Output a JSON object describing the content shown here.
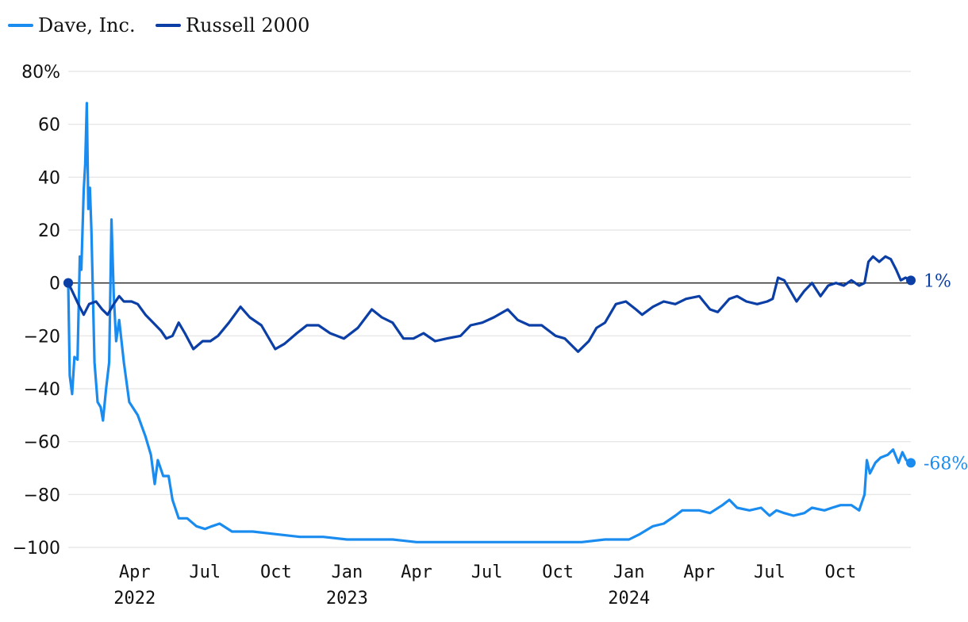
{
  "chart_data": {
    "type": "line",
    "title": "",
    "xlabel": "",
    "ylabel": "",
    "ylim": [
      -100,
      80
    ],
    "y_ticks": [
      80,
      60,
      40,
      20,
      0,
      -20,
      -40,
      -60,
      -80,
      -100
    ],
    "y_tick_labels": [
      "80%",
      "60",
      "40",
      "20",
      "0",
      "−20",
      "−40",
      "−60",
      "−80",
      "−100"
    ],
    "x_range": [
      "2022-01-05",
      "2024-12-31"
    ],
    "x_ticks": [
      {
        "date": "2022-04-01",
        "label": "Apr",
        "year": "2022"
      },
      {
        "date": "2022-07-01",
        "label": "Jul",
        "year": ""
      },
      {
        "date": "2022-10-01",
        "label": "Oct",
        "year": ""
      },
      {
        "date": "2023-01-01",
        "label": "Jan",
        "year": "2023"
      },
      {
        "date": "2023-04-01",
        "label": "Apr",
        "year": ""
      },
      {
        "date": "2023-07-01",
        "label": "Jul",
        "year": ""
      },
      {
        "date": "2023-10-01",
        "label": "Oct",
        "year": ""
      },
      {
        "date": "2024-01-01",
        "label": "Jan",
        "year": "2024"
      },
      {
        "date": "2024-04-01",
        "label": "Apr",
        "year": ""
      },
      {
        "date": "2024-07-01",
        "label": "Jul",
        "year": ""
      },
      {
        "date": "2024-10-01",
        "label": "Oct",
        "year": ""
      }
    ],
    "grid": true,
    "legend_position": "top-left",
    "series": [
      {
        "name": "Dave, Inc.",
        "color": "#1a8cf0",
        "end_label": "-68%",
        "points": [
          [
            "2022-01-05",
            0
          ],
          [
            "2022-01-07",
            -35
          ],
          [
            "2022-01-10",
            -42
          ],
          [
            "2022-01-13",
            -28
          ],
          [
            "2022-01-17",
            -29
          ],
          [
            "2022-01-20",
            10
          ],
          [
            "2022-01-22",
            5
          ],
          [
            "2022-01-25",
            35
          ],
          [
            "2022-01-27",
            45
          ],
          [
            "2022-01-29",
            68
          ],
          [
            "2022-01-31",
            28
          ],
          [
            "2022-02-02",
            36
          ],
          [
            "2022-02-04",
            20
          ],
          [
            "2022-02-08",
            -30
          ],
          [
            "2022-02-12",
            -45
          ],
          [
            "2022-02-16",
            -47
          ],
          [
            "2022-02-19",
            -52
          ],
          [
            "2022-02-23",
            -40
          ],
          [
            "2022-02-27",
            -30
          ],
          [
            "2022-03-02",
            24
          ],
          [
            "2022-03-05",
            -5
          ],
          [
            "2022-03-08",
            -22
          ],
          [
            "2022-03-12",
            -14
          ],
          [
            "2022-03-18",
            -30
          ],
          [
            "2022-03-25",
            -45
          ],
          [
            "2022-04-05",
            -50
          ],
          [
            "2022-04-15",
            -58
          ],
          [
            "2022-04-22",
            -65
          ],
          [
            "2022-04-27",
            -76
          ],
          [
            "2022-05-01",
            -67
          ],
          [
            "2022-05-08",
            -73
          ],
          [
            "2022-05-15",
            -73
          ],
          [
            "2022-05-20",
            -82
          ],
          [
            "2022-05-28",
            -89
          ],
          [
            "2022-06-08",
            -89
          ],
          [
            "2022-06-20",
            -92
          ],
          [
            "2022-07-01",
            -93
          ],
          [
            "2022-07-10",
            -92
          ],
          [
            "2022-07-20",
            -91
          ],
          [
            "2022-08-05",
            -94
          ],
          [
            "2022-09-01",
            -94
          ],
          [
            "2022-10-01",
            -95
          ],
          [
            "2022-11-01",
            -96
          ],
          [
            "2022-12-01",
            -96
          ],
          [
            "2023-01-01",
            -97
          ],
          [
            "2023-02-01",
            -97
          ],
          [
            "2023-03-01",
            -97
          ],
          [
            "2023-04-01",
            -98
          ],
          [
            "2023-05-01",
            -98
          ],
          [
            "2023-06-01",
            -98
          ],
          [
            "2023-07-01",
            -98
          ],
          [
            "2023-08-01",
            -98
          ],
          [
            "2023-09-01",
            -98
          ],
          [
            "2023-10-01",
            -98
          ],
          [
            "2023-11-01",
            -98
          ],
          [
            "2023-12-01",
            -97
          ],
          [
            "2024-01-01",
            -97
          ],
          [
            "2024-01-15",
            -95
          ],
          [
            "2024-02-01",
            -92
          ],
          [
            "2024-02-15",
            -91
          ],
          [
            "2024-03-01",
            -88
          ],
          [
            "2024-03-10",
            -86
          ],
          [
            "2024-04-01",
            -86
          ],
          [
            "2024-04-15",
            -87
          ],
          [
            "2024-05-01",
            -84
          ],
          [
            "2024-05-10",
            -82
          ],
          [
            "2024-05-20",
            -85
          ],
          [
            "2024-06-05",
            -86
          ],
          [
            "2024-06-20",
            -85
          ],
          [
            "2024-07-01",
            -88
          ],
          [
            "2024-07-10",
            -86
          ],
          [
            "2024-07-20",
            -87
          ],
          [
            "2024-08-01",
            -88
          ],
          [
            "2024-08-15",
            -87
          ],
          [
            "2024-08-25",
            -85
          ],
          [
            "2024-09-10",
            -86
          ],
          [
            "2024-09-20",
            -85
          ],
          [
            "2024-10-01",
            -84
          ],
          [
            "2024-10-15",
            -84
          ],
          [
            "2024-10-25",
            -86
          ],
          [
            "2024-11-01",
            -80
          ],
          [
            "2024-11-04",
            -67
          ],
          [
            "2024-11-08",
            -72
          ],
          [
            "2024-11-15",
            -68
          ],
          [
            "2024-11-22",
            -66
          ],
          [
            "2024-12-01",
            -65
          ],
          [
            "2024-12-08",
            -63
          ],
          [
            "2024-12-15",
            -68
          ],
          [
            "2024-12-20",
            -64
          ],
          [
            "2024-12-25",
            -67
          ],
          [
            "2024-12-31",
            -68
          ]
        ]
      },
      {
        "name": "Russell 2000",
        "color": "#0b3fa6",
        "end_label": "1%",
        "points": [
          [
            "2022-01-05",
            0
          ],
          [
            "2022-01-10",
            -3
          ],
          [
            "2022-01-18",
            -8
          ],
          [
            "2022-01-25",
            -12
          ],
          [
            "2022-02-01",
            -8
          ],
          [
            "2022-02-10",
            -7
          ],
          [
            "2022-02-18",
            -10
          ],
          [
            "2022-02-25",
            -12
          ],
          [
            "2022-03-05",
            -8
          ],
          [
            "2022-03-12",
            -5
          ],
          [
            "2022-03-18",
            -7
          ],
          [
            "2022-03-28",
            -7
          ],
          [
            "2022-04-05",
            -8
          ],
          [
            "2022-04-15",
            -12
          ],
          [
            "2022-04-25",
            -15
          ],
          [
            "2022-05-05",
            -18
          ],
          [
            "2022-05-12",
            -21
          ],
          [
            "2022-05-20",
            -20
          ],
          [
            "2022-05-28",
            -15
          ],
          [
            "2022-06-05",
            -19
          ],
          [
            "2022-06-16",
            -25
          ],
          [
            "2022-06-28",
            -22
          ],
          [
            "2022-07-08",
            -22
          ],
          [
            "2022-07-18",
            -20
          ],
          [
            "2022-08-01",
            -15
          ],
          [
            "2022-08-16",
            -9
          ],
          [
            "2022-08-28",
            -13
          ],
          [
            "2022-09-12",
            -16
          ],
          [
            "2022-09-30",
            -25
          ],
          [
            "2022-10-12",
            -23
          ],
          [
            "2022-10-28",
            -19
          ],
          [
            "2022-11-10",
            -16
          ],
          [
            "2022-11-25",
            -16
          ],
          [
            "2022-12-10",
            -19
          ],
          [
            "2022-12-28",
            -21
          ],
          [
            "2023-01-15",
            -17
          ],
          [
            "2023-02-02",
            -10
          ],
          [
            "2023-02-15",
            -13
          ],
          [
            "2023-03-01",
            -15
          ],
          [
            "2023-03-15",
            -21
          ],
          [
            "2023-03-28",
            -21
          ],
          [
            "2023-04-10",
            -19
          ],
          [
            "2023-04-25",
            -22
          ],
          [
            "2023-05-10",
            -21
          ],
          [
            "2023-05-28",
            -20
          ],
          [
            "2023-06-10",
            -16
          ],
          [
            "2023-06-25",
            -15
          ],
          [
            "2023-07-10",
            -13
          ],
          [
            "2023-07-28",
            -10
          ],
          [
            "2023-08-10",
            -14
          ],
          [
            "2023-08-25",
            -16
          ],
          [
            "2023-09-10",
            -16
          ],
          [
            "2023-09-28",
            -20
          ],
          [
            "2023-10-10",
            -21
          ],
          [
            "2023-10-27",
            -26
          ],
          [
            "2023-11-10",
            -22
          ],
          [
            "2023-11-20",
            -17
          ],
          [
            "2023-12-01",
            -15
          ],
          [
            "2023-12-15",
            -8
          ],
          [
            "2023-12-28",
            -7
          ],
          [
            "2024-01-10",
            -10
          ],
          [
            "2024-01-18",
            -12
          ],
          [
            "2024-02-01",
            -9
          ],
          [
            "2024-02-15",
            -7
          ],
          [
            "2024-03-01",
            -8
          ],
          [
            "2024-03-15",
            -6
          ],
          [
            "2024-04-01",
            -5
          ],
          [
            "2024-04-15",
            -10
          ],
          [
            "2024-04-25",
            -11
          ],
          [
            "2024-05-10",
            -6
          ],
          [
            "2024-05-20",
            -5
          ],
          [
            "2024-06-01",
            -7
          ],
          [
            "2024-06-15",
            -8
          ],
          [
            "2024-06-28",
            -7
          ],
          [
            "2024-07-05",
            -6
          ],
          [
            "2024-07-12",
            2
          ],
          [
            "2024-07-20",
            1
          ],
          [
            "2024-07-26",
            -2
          ],
          [
            "2024-08-05",
            -7
          ],
          [
            "2024-08-15",
            -3
          ],
          [
            "2024-08-25",
            0
          ],
          [
            "2024-09-05",
            -5
          ],
          [
            "2024-09-15",
            -1
          ],
          [
            "2024-09-25",
            0
          ],
          [
            "2024-10-05",
            -1
          ],
          [
            "2024-10-15",
            1
          ],
          [
            "2024-10-25",
            -1
          ],
          [
            "2024-11-01",
            0
          ],
          [
            "2024-11-06",
            8
          ],
          [
            "2024-11-12",
            10
          ],
          [
            "2024-11-20",
            8
          ],
          [
            "2024-11-28",
            10
          ],
          [
            "2024-12-05",
            9
          ],
          [
            "2024-12-12",
            5
          ],
          [
            "2024-12-18",
            1
          ],
          [
            "2024-12-24",
            2
          ],
          [
            "2024-12-31",
            1
          ]
        ]
      }
    ]
  }
}
